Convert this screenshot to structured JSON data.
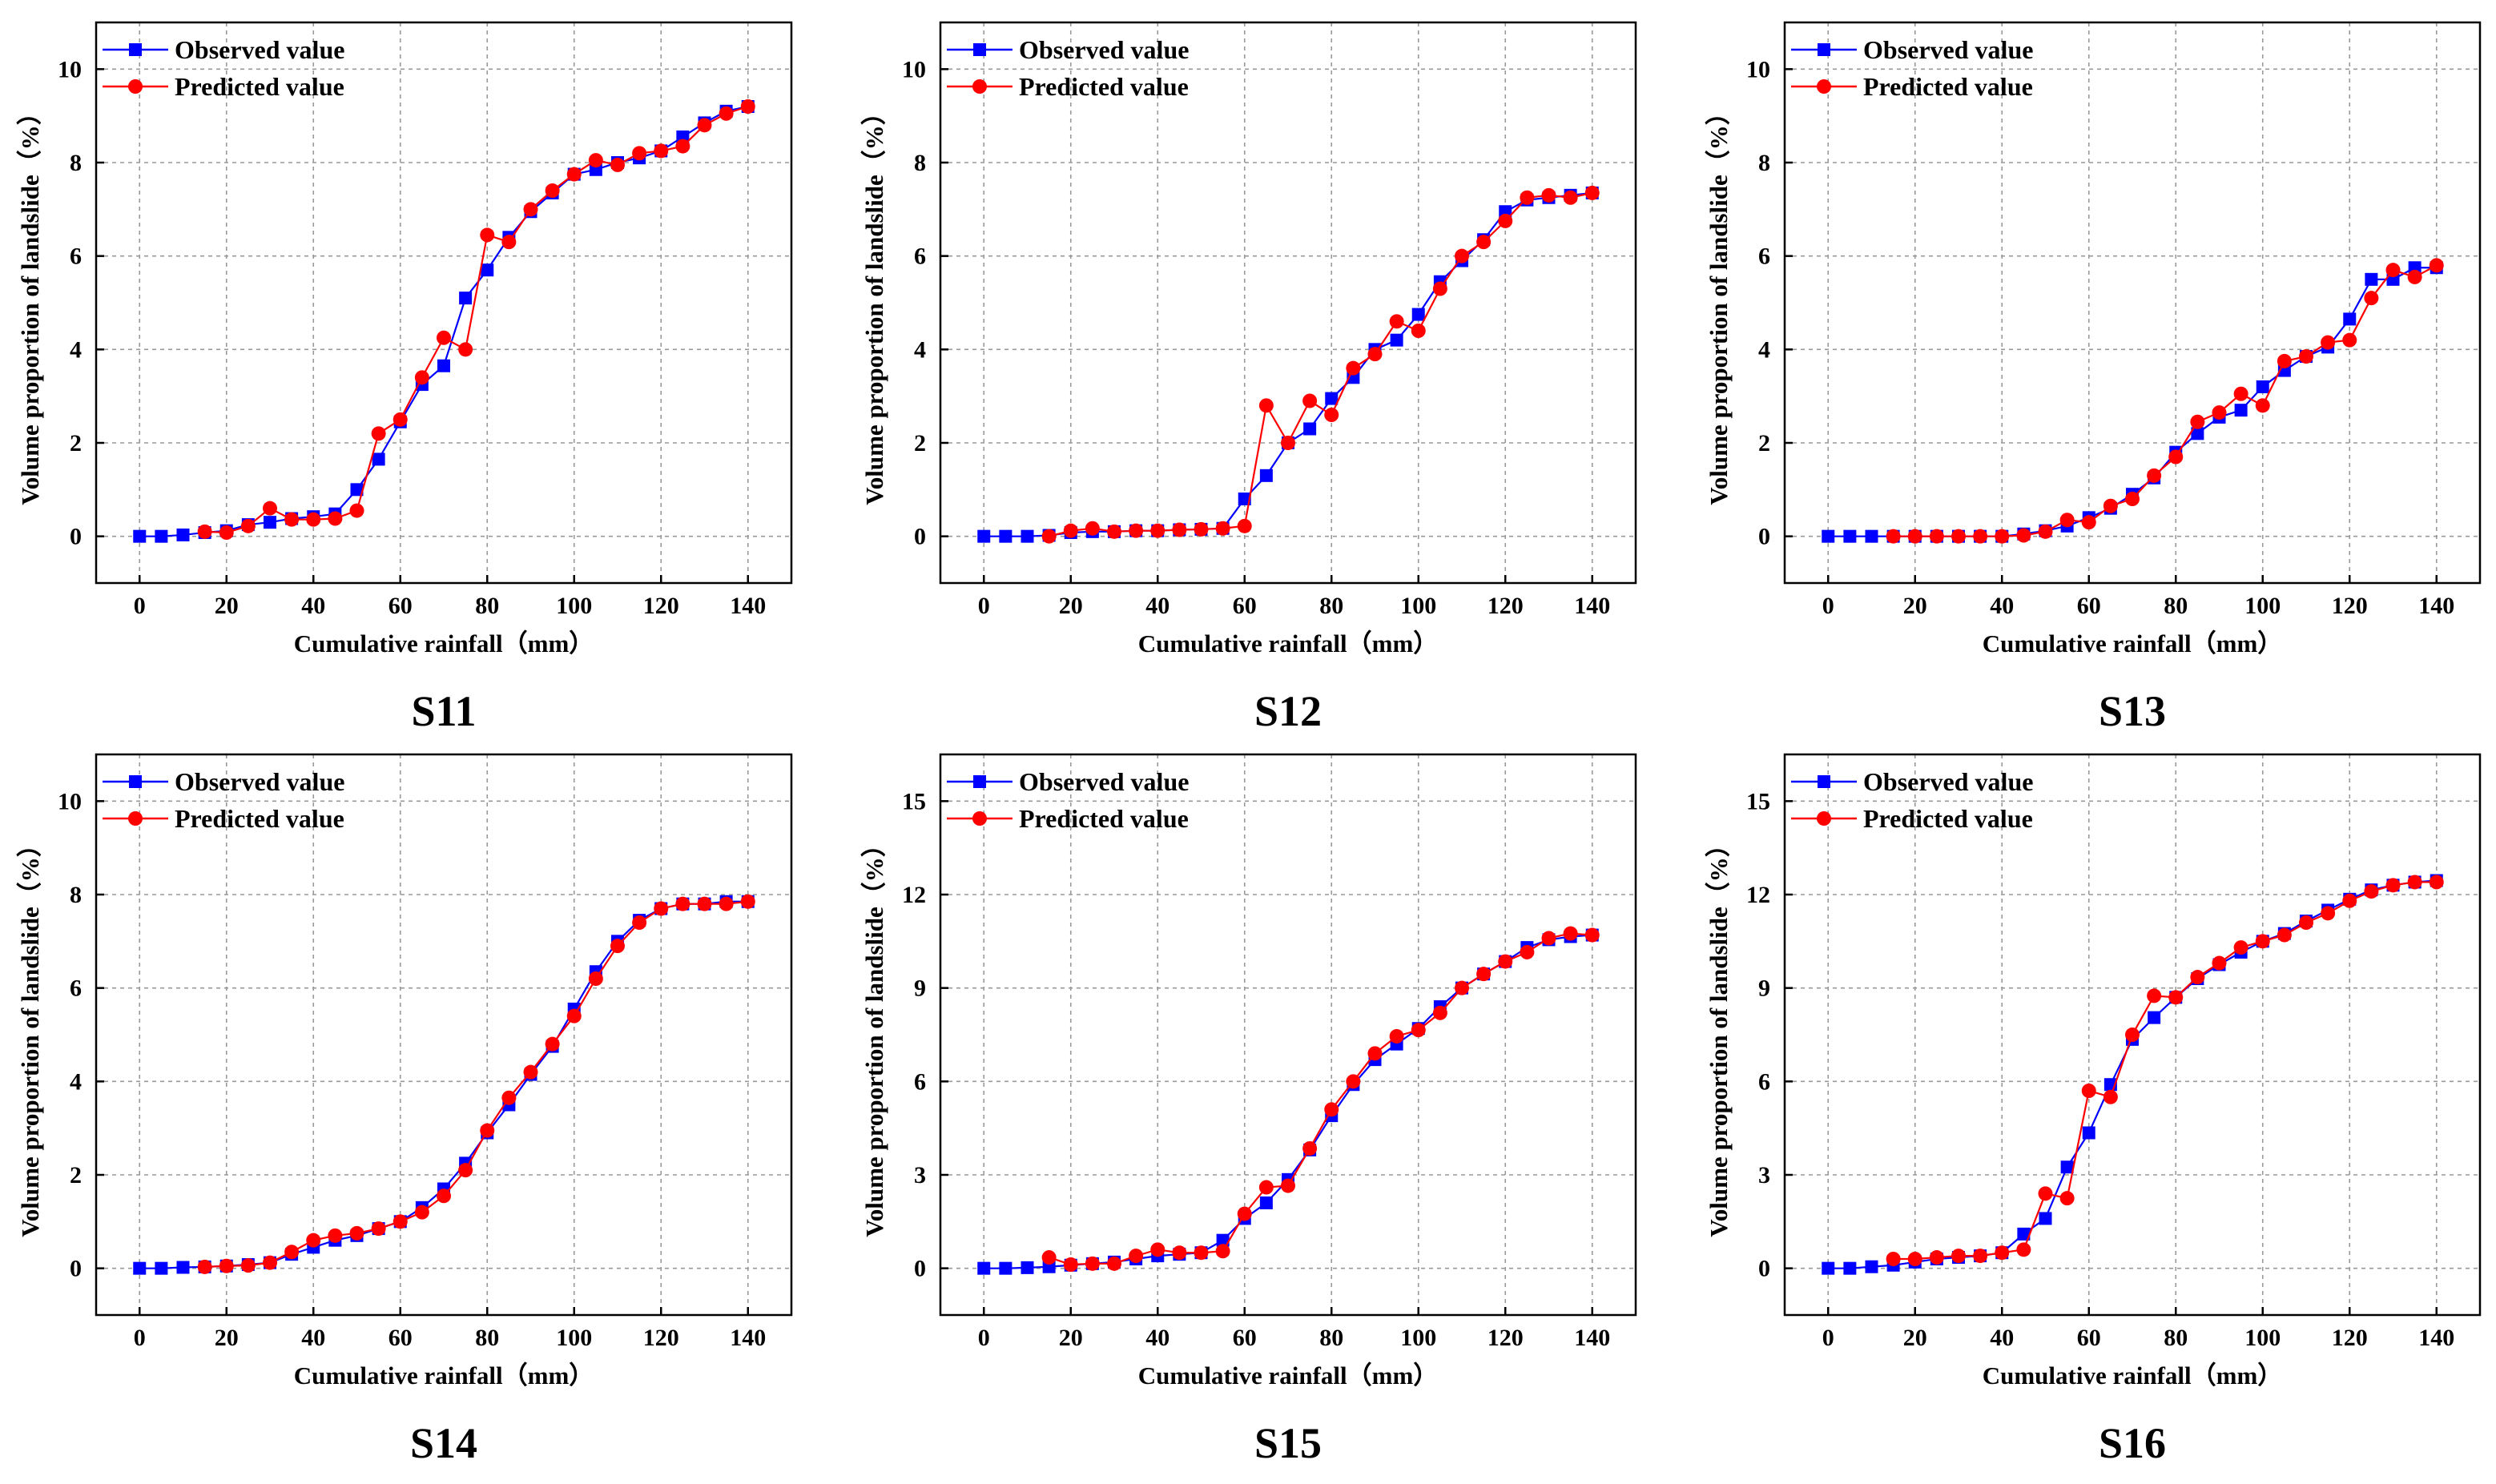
{
  "colors": {
    "observed": "#0000ff",
    "predicted": "#ff0000",
    "grid": "#999999",
    "axis": "#000000"
  },
  "chart_data": [
    {
      "type": "line",
      "label": "S11",
      "xlabel": "Cumulative rainfall（mm）",
      "ylabel": "Volume proportion of landslide（%）",
      "xlim": [
        -10,
        150
      ],
      "ylim": [
        -1,
        11
      ],
      "xticks": [
        0,
        20,
        40,
        60,
        80,
        100,
        120,
        140
      ],
      "yticks": [
        0,
        2,
        4,
        6,
        8,
        10
      ],
      "legend": "top-left",
      "grid": true,
      "series": [
        {
          "name": "Observed value",
          "marker": "square",
          "x": [
            0,
            5,
            10,
            15,
            20,
            25,
            30,
            35,
            40,
            45,
            50,
            55,
            60,
            65,
            70,
            75,
            80,
            85,
            90,
            95,
            100,
            105,
            110,
            115,
            120,
            125,
            130,
            135,
            140
          ],
          "y": [
            0,
            0,
            0.03,
            0.08,
            0.12,
            0.25,
            0.3,
            0.38,
            0.42,
            0.48,
            1.0,
            1.65,
            2.45,
            3.25,
            3.65,
            5.1,
            5.7,
            6.4,
            6.95,
            7.35,
            7.75,
            7.85,
            8.0,
            8.1,
            8.25,
            8.55,
            8.85,
            9.1,
            9.2
          ]
        },
        {
          "name": "Predicted value",
          "marker": "circle",
          "x": [
            15,
            20,
            25,
            30,
            35,
            40,
            45,
            50,
            55,
            60,
            65,
            70,
            75,
            80,
            85,
            90,
            95,
            100,
            105,
            110,
            115,
            120,
            125,
            130,
            135,
            140
          ],
          "y": [
            0.1,
            0.08,
            0.22,
            0.6,
            0.36,
            0.36,
            0.38,
            0.55,
            2.2,
            2.5,
            3.4,
            4.25,
            4.0,
            6.45,
            6.3,
            7.0,
            7.4,
            7.75,
            8.05,
            7.95,
            8.2,
            8.25,
            8.35,
            8.8,
            9.05,
            9.2
          ]
        }
      ]
    },
    {
      "type": "line",
      "label": "S12",
      "xlabel": "Cumulative rainfall（mm）",
      "ylabel": "Volume proportion of landslide（%）",
      "xlim": [
        -10,
        150
      ],
      "ylim": [
        -1,
        11
      ],
      "xticks": [
        0,
        20,
        40,
        60,
        80,
        100,
        120,
        140
      ],
      "yticks": [
        0,
        2,
        4,
        6,
        8,
        10
      ],
      "legend": "top-left",
      "grid": true,
      "series": [
        {
          "name": "Observed value",
          "marker": "square",
          "x": [
            0,
            5,
            10,
            15,
            20,
            25,
            30,
            35,
            40,
            45,
            50,
            55,
            60,
            65,
            70,
            75,
            80,
            85,
            90,
            95,
            100,
            105,
            110,
            115,
            120,
            125,
            130,
            135,
            140
          ],
          "y": [
            0,
            0,
            0,
            0.02,
            0.08,
            0.1,
            0.1,
            0.12,
            0.12,
            0.14,
            0.15,
            0.17,
            0.8,
            1.3,
            2.0,
            2.3,
            2.95,
            3.4,
            4.0,
            4.2,
            4.75,
            5.45,
            5.9,
            6.35,
            6.95,
            7.2,
            7.25,
            7.3,
            7.35
          ]
        },
        {
          "name": "Predicted value",
          "marker": "circle",
          "x": [
            15,
            20,
            25,
            30,
            35,
            40,
            45,
            50,
            55,
            60,
            65,
            70,
            75,
            80,
            85,
            90,
            95,
            100,
            105,
            110,
            115,
            120,
            125,
            130,
            135,
            140
          ],
          "y": [
            0,
            0.12,
            0.17,
            0.1,
            0.12,
            0.12,
            0.14,
            0.15,
            0.17,
            0.22,
            2.8,
            2.0,
            2.9,
            2.6,
            3.6,
            3.9,
            4.6,
            4.4,
            5.3,
            6.0,
            6.3,
            6.75,
            7.25,
            7.3,
            7.25,
            7.35
          ]
        }
      ]
    },
    {
      "type": "line",
      "label": "S13",
      "xlabel": "Cumulative rainfall（mm）",
      "ylabel": "Volume proportion of landslide（%）",
      "xlim": [
        -10,
        150
      ],
      "ylim": [
        -1,
        11
      ],
      "xticks": [
        0,
        20,
        40,
        60,
        80,
        100,
        120,
        140
      ],
      "yticks": [
        0,
        2,
        4,
        6,
        8,
        10
      ],
      "legend": "top-left",
      "grid": true,
      "series": [
        {
          "name": "Observed value",
          "marker": "square",
          "x": [
            0,
            5,
            10,
            15,
            20,
            25,
            30,
            35,
            40,
            45,
            50,
            55,
            60,
            65,
            70,
            75,
            80,
            85,
            90,
            95,
            100,
            105,
            110,
            115,
            120,
            125,
            130,
            135,
            140
          ],
          "y": [
            0,
            0,
            0,
            0,
            0,
            0,
            0,
            0,
            0,
            0.05,
            0.12,
            0.22,
            0.4,
            0.6,
            0.9,
            1.25,
            1.8,
            2.2,
            2.55,
            2.7,
            3.2,
            3.55,
            3.85,
            4.05,
            4.65,
            5.5,
            5.5,
            5.75,
            5.75
          ]
        },
        {
          "name": "Predicted value",
          "marker": "circle",
          "x": [
            15,
            20,
            25,
            30,
            35,
            40,
            45,
            50,
            55,
            60,
            65,
            70,
            75,
            80,
            85,
            90,
            95,
            100,
            105,
            110,
            115,
            120,
            125,
            130,
            135,
            140
          ],
          "y": [
            0,
            0,
            0,
            0,
            0,
            0,
            0.02,
            0.1,
            0.35,
            0.3,
            0.65,
            0.8,
            1.3,
            1.7,
            2.45,
            2.65,
            3.05,
            2.8,
            3.75,
            3.85,
            4.15,
            4.2,
            5.1,
            5.7,
            5.55,
            5.8
          ]
        }
      ]
    },
    {
      "type": "line",
      "label": "S14",
      "xlabel": "Cumulative rainfall（mm）",
      "ylabel": "Volume proportion of landslide（%）",
      "xlim": [
        -10,
        150
      ],
      "ylim": [
        -1,
        11
      ],
      "xticks": [
        0,
        20,
        40,
        60,
        80,
        100,
        120,
        140
      ],
      "yticks": [
        0,
        2,
        4,
        6,
        8,
        10
      ],
      "legend": "top-left",
      "grid": true,
      "series": [
        {
          "name": "Observed value",
          "marker": "square",
          "x": [
            0,
            5,
            10,
            15,
            20,
            25,
            30,
            35,
            40,
            45,
            50,
            55,
            60,
            65,
            70,
            75,
            80,
            85,
            90,
            95,
            100,
            105,
            110,
            115,
            120,
            125,
            130,
            135,
            140
          ],
          "y": [
            0,
            0,
            0.02,
            0.03,
            0.05,
            0.08,
            0.12,
            0.3,
            0.45,
            0.6,
            0.7,
            0.85,
            1.0,
            1.3,
            1.7,
            2.25,
            2.9,
            3.5,
            4.15,
            4.75,
            5.55,
            6.35,
            7.0,
            7.45,
            7.7,
            7.8,
            7.8,
            7.85,
            7.85
          ]
        },
        {
          "name": "Predicted value",
          "marker": "circle",
          "x": [
            15,
            20,
            25,
            30,
            35,
            40,
            45,
            50,
            55,
            60,
            65,
            70,
            75,
            80,
            85,
            90,
            95,
            100,
            105,
            110,
            115,
            120,
            125,
            130,
            135,
            140
          ],
          "y": [
            0.03,
            0.05,
            0.06,
            0.12,
            0.35,
            0.6,
            0.7,
            0.75,
            0.85,
            1.0,
            1.2,
            1.55,
            2.1,
            2.95,
            3.65,
            4.2,
            4.8,
            5.4,
            6.2,
            6.9,
            7.4,
            7.7,
            7.8,
            7.8,
            7.8,
            7.85
          ]
        }
      ]
    },
    {
      "type": "line",
      "label": "S15",
      "xlabel": "Cumulative rainfall（mm）",
      "ylabel": "Volume proportion of landslide（%）",
      "xlim": [
        -10,
        150
      ],
      "ylim": [
        -1.5,
        16.5
      ],
      "xticks": [
        0,
        20,
        40,
        60,
        80,
        100,
        120,
        140
      ],
      "yticks": [
        0,
        3,
        6,
        9,
        12,
        15
      ],
      "legend": "top-left",
      "grid": true,
      "series": [
        {
          "name": "Observed value",
          "marker": "square",
          "x": [
            0,
            5,
            10,
            15,
            20,
            25,
            30,
            35,
            40,
            45,
            50,
            55,
            60,
            65,
            70,
            75,
            80,
            85,
            90,
            95,
            100,
            105,
            110,
            115,
            120,
            125,
            130,
            135,
            140
          ],
          "y": [
            0,
            0,
            0.02,
            0.05,
            0.1,
            0.15,
            0.2,
            0.3,
            0.4,
            0.45,
            0.5,
            0.9,
            1.6,
            2.1,
            2.85,
            3.8,
            4.9,
            5.9,
            6.7,
            7.2,
            7.7,
            8.4,
            9.0,
            9.45,
            9.85,
            10.3,
            10.55,
            10.65,
            10.7
          ]
        },
        {
          "name": "Predicted value",
          "marker": "circle",
          "x": [
            15,
            20,
            25,
            30,
            35,
            40,
            45,
            50,
            55,
            60,
            65,
            70,
            75,
            80,
            85,
            90,
            95,
            100,
            105,
            110,
            115,
            120,
            125,
            130,
            135,
            140
          ],
          "y": [
            0.35,
            0.12,
            0.15,
            0.15,
            0.4,
            0.6,
            0.5,
            0.5,
            0.55,
            1.75,
            2.6,
            2.65,
            3.85,
            5.1,
            6.0,
            6.9,
            7.45,
            7.65,
            8.2,
            9.0,
            9.45,
            9.85,
            10.15,
            10.6,
            10.75,
            10.7
          ]
        }
      ]
    },
    {
      "type": "line",
      "label": "S16",
      "xlabel": "Cumulative rainfall（mm）",
      "ylabel": "Volume proportion of landslide（%）",
      "xlim": [
        -10,
        150
      ],
      "ylim": [
        -1.5,
        16.5
      ],
      "xticks": [
        0,
        20,
        40,
        60,
        80,
        100,
        120,
        140
      ],
      "yticks": [
        0,
        3,
        6,
        9,
        12,
        15
      ],
      "legend": "top-left",
      "grid": true,
      "series": [
        {
          "name": "Observed value",
          "marker": "square",
          "x": [
            0,
            5,
            10,
            15,
            20,
            25,
            30,
            35,
            40,
            45,
            50,
            55,
            60,
            65,
            70,
            75,
            80,
            85,
            90,
            95,
            100,
            105,
            110,
            115,
            120,
            125,
            130,
            135,
            140
          ],
          "y": [
            0,
            0,
            0.05,
            0.1,
            0.2,
            0.3,
            0.35,
            0.4,
            0.5,
            1.1,
            1.6,
            3.25,
            4.35,
            5.9,
            7.35,
            8.05,
            8.7,
            9.3,
            9.75,
            10.15,
            10.5,
            10.75,
            11.15,
            11.5,
            11.85,
            12.15,
            12.3,
            12.4,
            12.45
          ]
        },
        {
          "name": "Predicted value",
          "marker": "circle",
          "x": [
            15,
            20,
            25,
            30,
            35,
            40,
            45,
            50,
            55,
            60,
            65,
            70,
            75,
            80,
            85,
            90,
            95,
            100,
            105,
            110,
            115,
            120,
            125,
            130,
            135,
            140
          ],
          "y": [
            0.3,
            0.3,
            0.35,
            0.4,
            0.4,
            0.5,
            0.6,
            2.4,
            2.25,
            5.7,
            5.5,
            7.5,
            8.75,
            8.7,
            9.35,
            9.8,
            10.3,
            10.5,
            10.7,
            11.1,
            11.4,
            11.8,
            12.1,
            12.3,
            12.4,
            12.4
          ]
        }
      ]
    }
  ]
}
